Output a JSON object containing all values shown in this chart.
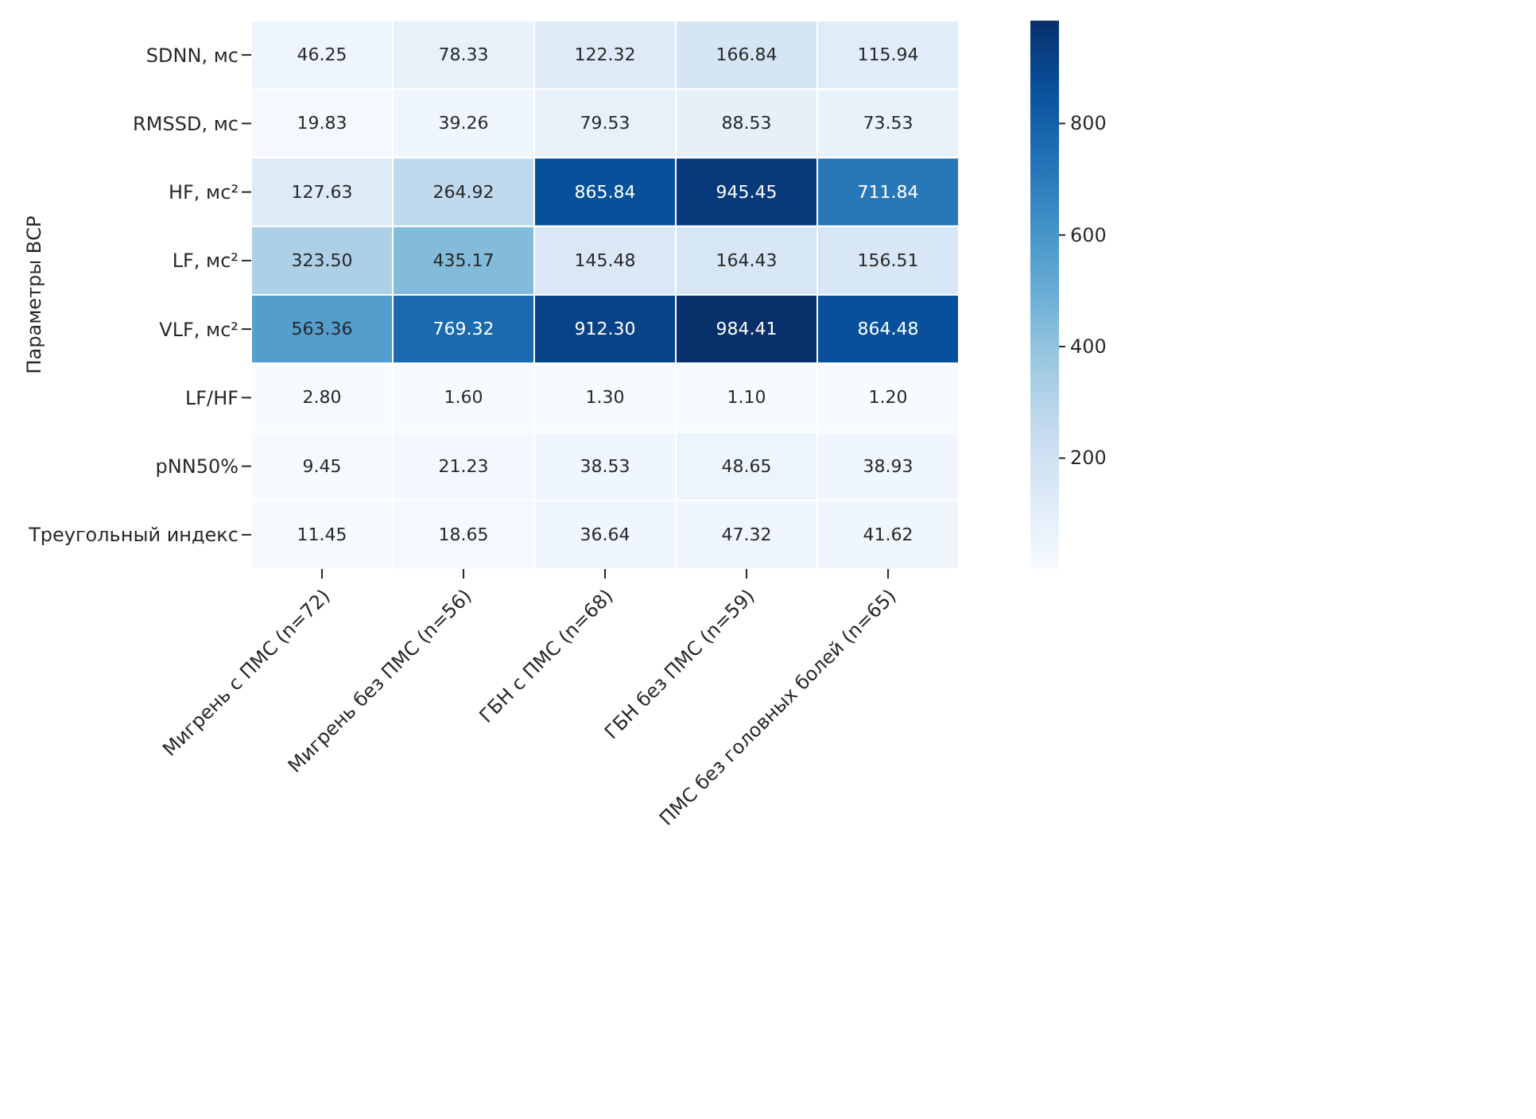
{
  "chart_data": {
    "type": "heatmap",
    "ylabel": "Параметры ВСР",
    "categories": [
      "Мигрень с ПМС (n=72)",
      "Мигрень без ПМС (n=56)",
      "ГБН с ПМС (n=68)",
      "ГБН без ПМС (n=59)",
      "ПМС без головных болей (n=65)"
    ],
    "y_categories": [
      "SDNN, мс",
      "RMSSD, мс",
      "HF, мс²",
      "LF, мс²",
      "VLF, мс²",
      "LF/HF",
      "pNN50%",
      "Треугольный индекс"
    ],
    "cells": [
      [
        46.25,
        78.33,
        122.32,
        166.84,
        115.94
      ],
      [
        19.83,
        39.26,
        79.53,
        88.53,
        73.53
      ],
      [
        127.63,
        264.92,
        865.84,
        945.45,
        711.84
      ],
      [
        323.5,
        435.17,
        145.48,
        164.43,
        156.51
      ],
      [
        563.36,
        769.32,
        912.3,
        984.41,
        864.48
      ],
      [
        2.8,
        1.6,
        1.3,
        1.1,
        1.2
      ],
      [
        9.45,
        21.23,
        38.53,
        48.65,
        38.93
      ],
      [
        11.45,
        18.65,
        36.64,
        47.32,
        41.62
      ]
    ],
    "cell_labels": [
      [
        "46.25",
        "78.33",
        "122.32",
        "166.84",
        "115.94"
      ],
      [
        "19.83",
        "39.26",
        "79.53",
        "88.53",
        "73.53"
      ],
      [
        "127.63",
        "264.92",
        "865.84",
        "945.45",
        "711.84"
      ],
      [
        "323.50",
        "435.17",
        "145.48",
        "164.43",
        "156.51"
      ],
      [
        "563.36",
        "769.32",
        "912.30",
        "984.41",
        "864.48"
      ],
      [
        "2.80",
        "1.60",
        "1.30",
        "1.10",
        "1.20"
      ],
      [
        "9.45",
        "21.23",
        "38.53",
        "48.65",
        "38.93"
      ],
      [
        "11.45",
        "18.65",
        "36.64",
        "47.32",
        "41.62"
      ]
    ],
    "clim": [
      1.1,
      984.41
    ],
    "cticks": [
      200,
      400,
      600,
      800
    ]
  }
}
